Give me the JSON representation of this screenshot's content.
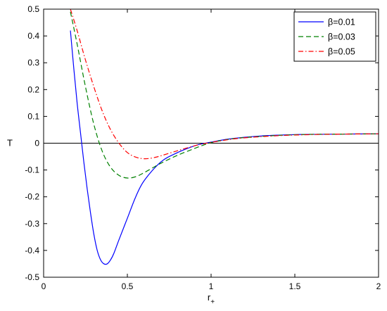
{
  "chart_data": {
    "type": "line",
    "title": "",
    "xlabel": "r",
    "xlabel_subscript": "+",
    "ylabel": "T",
    "xlim": [
      0,
      2
    ],
    "ylim": [
      -0.5,
      0.5
    ],
    "xticks": [
      "0",
      "0.5",
      "1",
      "1.5",
      "2"
    ],
    "yticks": [
      "0.5",
      "0.4",
      "0.3",
      "0.2",
      "0.1",
      "0",
      "-0.1",
      "-0.2",
      "-0.3",
      "-0.4",
      "-0.5"
    ],
    "grid": false,
    "legend_position": "top-right",
    "zero_line": true,
    "series": [
      {
        "name": "β=0.01",
        "color": "#0000ff",
        "dash": "solid",
        "x": [
          0.16,
          0.18,
          0.2,
          0.22,
          0.24,
          0.26,
          0.28,
          0.3,
          0.32,
          0.34,
          0.36,
          0.38,
          0.4,
          0.42,
          0.45,
          0.5,
          0.55,
          0.6,
          0.7,
          0.8,
          0.9,
          0.95,
          1.0,
          1.1,
          1.2,
          1.3,
          1.4,
          1.5,
          1.6,
          1.8,
          2.0
        ],
        "y": [
          0.42,
          0.28,
          0.15,
          0.04,
          -0.07,
          -0.17,
          -0.26,
          -0.34,
          -0.4,
          -0.435,
          -0.45,
          -0.45,
          -0.435,
          -0.41,
          -0.36,
          -0.28,
          -0.2,
          -0.14,
          -0.07,
          -0.035,
          -0.01,
          -0.002,
          0.004,
          0.015,
          0.022,
          0.027,
          0.03,
          0.032,
          0.033,
          0.034,
          0.035
        ]
      },
      {
        "name": "β=0.03",
        "color": "#008000",
        "dash": "dashed",
        "x": [
          0.16,
          0.2,
          0.25,
          0.3,
          0.35,
          0.4,
          0.45,
          0.5,
          0.55,
          0.6,
          0.7,
          0.8,
          0.9,
          0.95,
          1.0,
          1.1,
          1.2,
          1.4,
          1.6,
          1.8,
          2.0
        ],
        "y": [
          0.49,
          0.37,
          0.21,
          0.07,
          -0.03,
          -0.09,
          -0.12,
          -0.13,
          -0.125,
          -0.11,
          -0.075,
          -0.045,
          -0.02,
          -0.008,
          0.002,
          0.014,
          0.021,
          0.029,
          0.033,
          0.034,
          0.035
        ]
      },
      {
        "name": "β=0.05",
        "color": "#ff0000",
        "dash": "dashdot",
        "x": [
          0.16,
          0.2,
          0.25,
          0.3,
          0.35,
          0.4,
          0.45,
          0.5,
          0.55,
          0.6,
          0.65,
          0.7,
          0.8,
          0.9,
          0.95,
          1.0,
          1.1,
          1.2,
          1.4,
          1.6,
          1.8,
          2.0
        ],
        "y": [
          0.5,
          0.42,
          0.31,
          0.21,
          0.12,
          0.05,
          0.0,
          -0.035,
          -0.052,
          -0.058,
          -0.055,
          -0.047,
          -0.028,
          -0.01,
          -0.003,
          0.003,
          0.013,
          0.02,
          0.028,
          0.032,
          0.034,
          0.035
        ]
      }
    ]
  }
}
